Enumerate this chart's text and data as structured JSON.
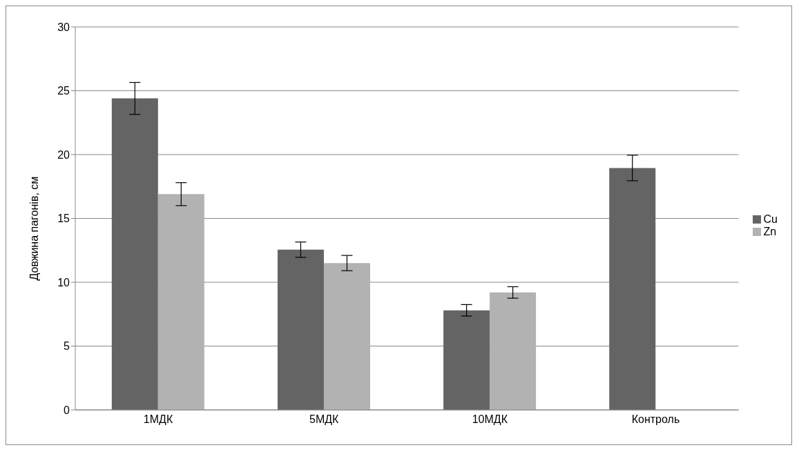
{
  "chart_data": {
    "type": "bar",
    "ylabel": "Довжина пагонів, см",
    "categories": [
      "1МДК",
      "5МДК",
      "10МДК",
      "Контроль"
    ],
    "series": [
      {
        "name": "Cu",
        "color": "#646464",
        "values": [
          24.4,
          12.55,
          7.8,
          18.95
        ],
        "errors": [
          1.25,
          0.6,
          0.45,
          1.0
        ]
      },
      {
        "name": "Zn",
        "color": "#b2b2b2",
        "values": [
          16.9,
          11.5,
          9.2,
          null
        ],
        "errors": [
          0.9,
          0.6,
          0.45,
          null
        ]
      }
    ],
    "ylim": [
      0,
      30
    ],
    "yticks": [
      0,
      5,
      10,
      15,
      20,
      25,
      30
    ],
    "grid": "y",
    "legend": "right"
  }
}
